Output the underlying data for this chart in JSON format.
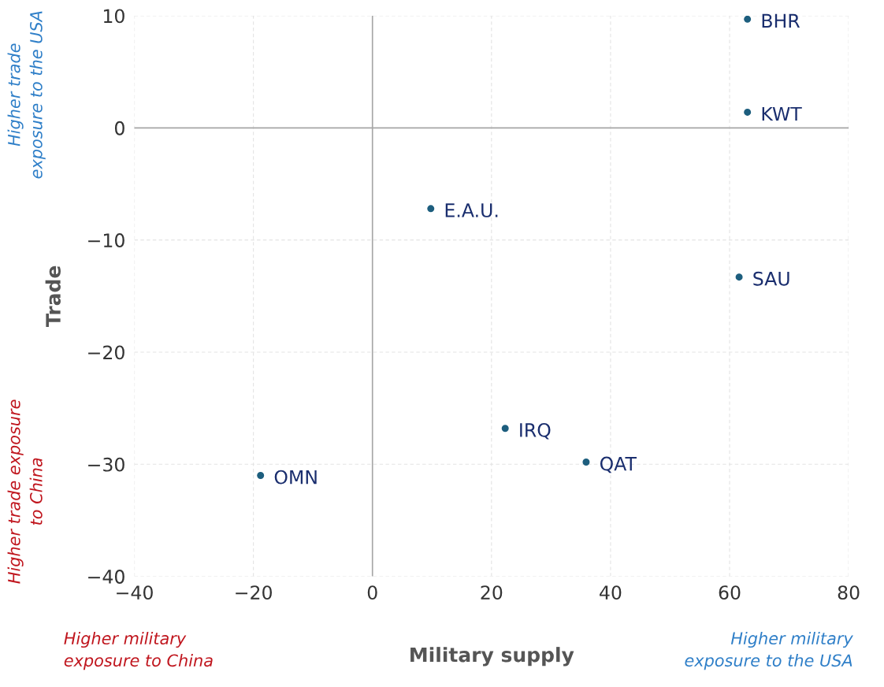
{
  "chart_data": {
    "type": "scatter",
    "xlabel": "Military supply",
    "ylabel": "Trade",
    "series": [
      {
        "color": "#1d5e7e",
        "x": [
          63.0,
          63.0,
          9.8,
          61.6,
          22.3,
          35.9,
          -18.8
        ],
        "values": [
          9.7,
          1.4,
          -7.2,
          -13.3,
          -26.8,
          -29.8,
          -31.0
        ]
      }
    ],
    "marker": "circle",
    "xlim": [
      -40,
      80
    ],
    "xticks": [
      -40,
      -20,
      0,
      20,
      40,
      60,
      80
    ],
    "ylim": [
      -40,
      10
    ],
    "yticks": [
      -40,
      -30,
      -20,
      -10,
      0,
      10
    ],
    "grid": true,
    "annotations": [
      {
        "text": "BHR",
        "x": 63.0,
        "y": 9.7
      },
      {
        "text": "KWT",
        "x": 63.0,
        "y": 1.4
      },
      {
        "text": "E.A.U.",
        "x": 9.8,
        "y": -7.2
      },
      {
        "text": "SAU",
        "x": 61.6,
        "y": -13.3
      },
      {
        "text": "IRQ",
        "x": 22.3,
        "y": -26.8
      },
      {
        "text": "QAT",
        "x": 35.9,
        "y": -29.8
      },
      {
        "text": "OMN",
        "x": -18.8,
        "y": -31.0
      },
      "Higher trade\nexposure to the USA",
      "Higher trade exposure\nto China",
      "Higher military\nexposure to China",
      "Higher military\nexposure to the USA"
    ]
  }
}
